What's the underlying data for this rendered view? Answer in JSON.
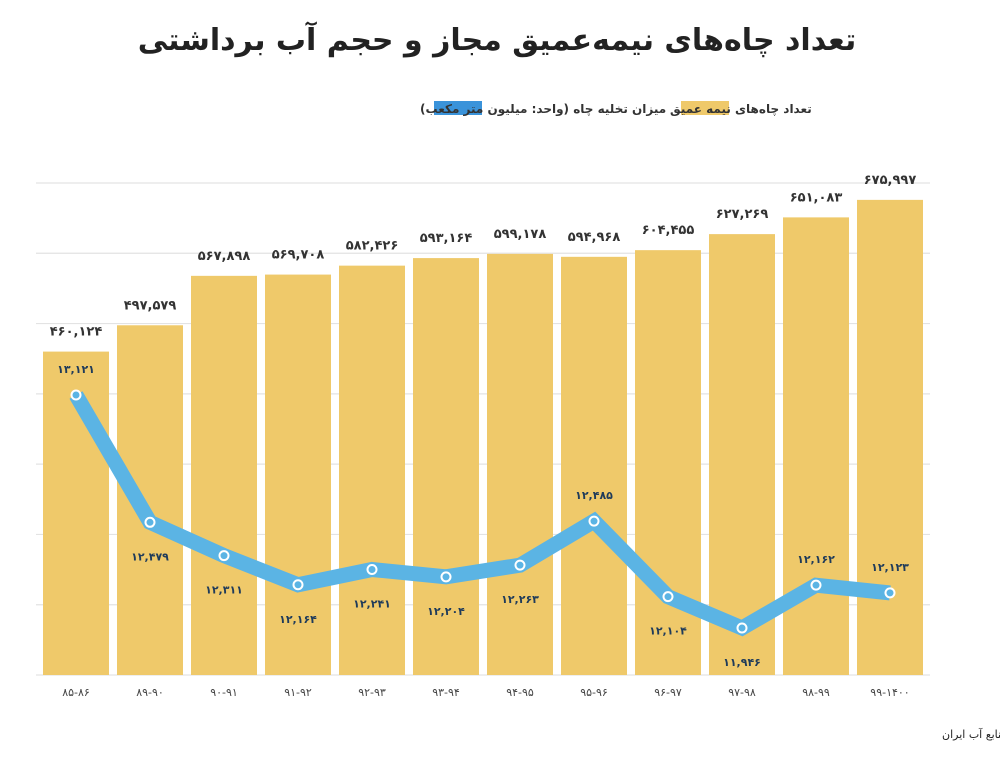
{
  "chart_data": {
    "type": "bar+line",
    "title": "تعداد چاه‌های نیمه‌عمیق مجاز و حجم آب برداشتی",
    "categories": [
      "۸۵-۸۶",
      "۸۹-۹۰",
      "۹۰-۹۱",
      "۹۱-۹۲",
      "۹۲-۹۳",
      "۹۳-۹۴",
      "۹۴-۹۵",
      "۹۵-۹۶",
      "۹۶-۹۷",
      "۹۷-۹۸",
      "۹۸-۹۹",
      "۹۹-۱۴۰۰"
    ],
    "series": [
      {
        "name": "تعداد چاه‌های نیمه عمیق",
        "type": "bar",
        "color": "#EFC96A",
        "values": [
          460124,
          497579,
          567898,
          569708,
          582426,
          593164,
          599178,
          594968,
          604455,
          627269,
          651083,
          675997
        ],
        "labels": [
          "۴۶۰,۱۲۴",
          "۴۹۷,۵۷۹",
          "۵۶۷,۸۹۸",
          "۵۶۹,۷۰۸",
          "۵۸۲,۴۲۶",
          "۵۹۳,۱۶۴",
          "۵۹۹,۱۷۸",
          "۵۹۴,۹۶۸",
          "۶۰۴,۴۵۵",
          "۶۲۷,۲۶۹",
          "۶۵۱,۰۸۳",
          "۶۷۵,۹۹۷"
        ]
      },
      {
        "name": "میزان تخلیه چاه (واحد: میلیون متر مکعب)",
        "type": "line",
        "color": "#5BB4E4",
        "legend_color": "#3A93DA",
        "values": [
          13121,
          12479,
          12311,
          12164,
          12241,
          12204,
          12263,
          12485,
          12104,
          11946,
          12162,
          12123
        ],
        "labels": [
          "۱۳,۱۲۱",
          "۱۲,۴۷۹",
          "۱۲,۳۱۱",
          "۱۲,۱۶۴",
          "۱۲,۲۴۱",
          "۱۲,۲۰۴",
          "۱۲,۲۶۳",
          "۱۲,۴۸۵",
          "۱۲,۱۰۴",
          "۱۱,۹۴۶",
          "۱۲,۱۶۲",
          "۱۲,۱۲۳"
        ]
      }
    ],
    "ylim": [
      0,
      700000
    ],
    "grid": true,
    "legend_position": "top"
  },
  "source": "منبع: سالنامه‌های آماری  مرکز آمار ایران به نقل از شرکت مدیریت منابع آب ایران"
}
